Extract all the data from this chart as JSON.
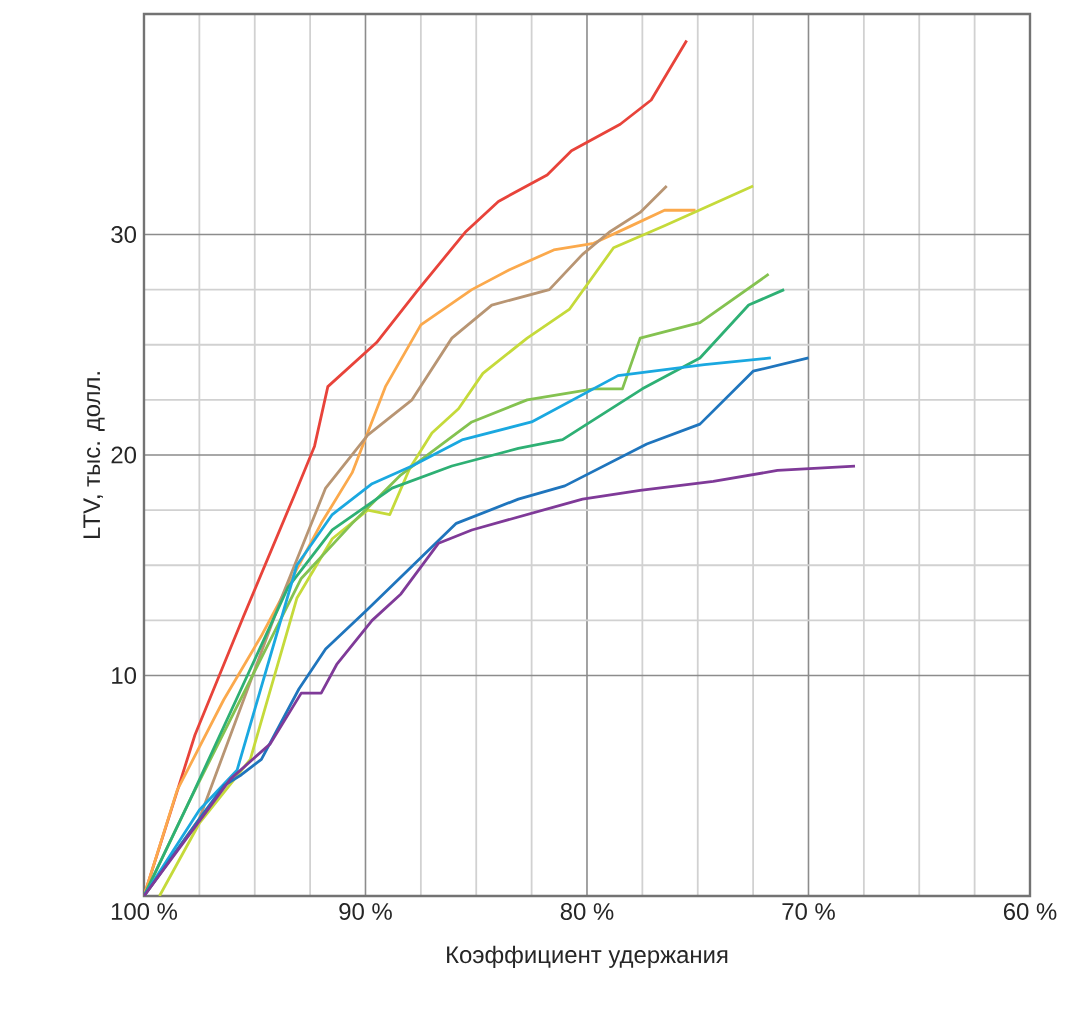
{
  "chart_data": {
    "type": "line",
    "xlabel": "Коэффициент удержания",
    "ylabel": "LTV, тыс. долл.",
    "xlim": [
      100,
      60
    ],
    "ylim": [
      0,
      40
    ],
    "xticks": [
      {
        "value": 100,
        "label": "100 %"
      },
      {
        "value": 90,
        "label": "90 %"
      },
      {
        "value": 80,
        "label": "80 %"
      },
      {
        "value": 70,
        "label": "70 %"
      },
      {
        "value": 60,
        "label": "60 %"
      }
    ],
    "yticks": [
      10,
      20,
      30
    ],
    "grid": true,
    "marker": "none",
    "line_style": "solid",
    "series": [
      {
        "color": "#e8433a",
        "x": [
          100,
          97.7,
          95.5,
          93.2,
          92.3,
          91.7,
          89.5,
          87.7,
          85.5,
          84,
          81.8,
          80.7,
          78.5,
          77.1,
          75.5
        ],
        "values": [
          0,
          7.3,
          12.7,
          18.2,
          20.4,
          23.1,
          25.1,
          27.4,
          30.1,
          31.5,
          32.7,
          33.8,
          35,
          36.1,
          38.8
        ]
      },
      {
        "color": "#fba94c",
        "x": [
          100,
          98.5,
          96.4,
          94.7,
          92,
          90.6,
          89.1,
          87.5,
          85.2,
          83.5,
          81.5,
          79.7,
          78.2,
          76.5,
          75.1
        ],
        "values": [
          0,
          4.8,
          8.9,
          11.8,
          16.9,
          19.2,
          23.1,
          25.9,
          27.5,
          28.4,
          29.3,
          29.6,
          30.3,
          31.1,
          31.1
        ]
      },
      {
        "color": "#b89573",
        "x": [
          100,
          97.5,
          93.8,
          91.8,
          89.9,
          87.9,
          86.1,
          84.3,
          81.7,
          80.2,
          79,
          77.6,
          76.4
        ],
        "values": [
          0,
          3.5,
          13.5,
          18.5,
          20.9,
          22.5,
          25.3,
          26.8,
          27.5,
          29.1,
          30.1,
          31,
          32.2
        ]
      },
      {
        "color": "#c5da3a",
        "x": [
          99.3,
          97.5,
          95.2,
          93.1,
          91.5,
          89.9,
          88.9,
          88,
          87,
          85.8,
          84.7,
          82.7,
          80.8,
          78.8,
          76.5,
          72.5
        ],
        "values": [
          0,
          3.3,
          6.2,
          13.5,
          16.2,
          17.5,
          17.3,
          19.4,
          21,
          22.1,
          23.7,
          25.3,
          26.6,
          29.4,
          30.4,
          32.2
        ]
      },
      {
        "color": "#84c250",
        "x": [
          100,
          97.9,
          92.9,
          90.6,
          88.4,
          85.2,
          82.7,
          79.7,
          78.4,
          77.6,
          74.9,
          71.8
        ],
        "values": [
          0,
          4.4,
          14.4,
          16.9,
          19.1,
          21.5,
          22.5,
          23,
          23,
          25.3,
          26,
          28.2
        ]
      },
      {
        "color": "#2eb074",
        "x": [
          100,
          97.9,
          93.5,
          91.5,
          88.8,
          86.1,
          83.1,
          81.1,
          77.5,
          74.9,
          72.7,
          71.1
        ],
        "values": [
          0,
          4.4,
          14,
          16.6,
          18.5,
          19.5,
          20.3,
          20.7,
          23,
          24.4,
          26.8,
          27.5
        ]
      },
      {
        "color": "#1aa8e0",
        "x": [
          100,
          97.5,
          95.8,
          93.1,
          91.5,
          89.7,
          87.9,
          85.6,
          82.5,
          78.6,
          74.7,
          71.7
        ],
        "values": [
          0,
          3.9,
          5.7,
          15,
          17.3,
          18.7,
          19.5,
          20.7,
          21.5,
          23.6,
          24.1,
          24.4
        ]
      },
      {
        "color": "#1f75bd",
        "x": [
          100,
          97.5,
          96.4,
          95.6,
          94.7,
          93,
          91.8,
          89.9,
          85.9,
          83.1,
          81,
          77.3,
          74.9,
          72.5,
          70
        ],
        "values": [
          0,
          3.5,
          5,
          5.5,
          6.2,
          9.4,
          11.2,
          13,
          16.9,
          18,
          18.6,
          20.5,
          21.4,
          23.8,
          24.4
        ]
      },
      {
        "color": "#7f3a98",
        "x": [
          100,
          96.1,
          94.3,
          92.9,
          92,
          91.3,
          89.7,
          88.4,
          86.7,
          85.2,
          80.2,
          77.6,
          74.3,
          71.4,
          67.9
        ],
        "values": [
          0,
          5.3,
          6.9,
          9.2,
          9.2,
          10.5,
          12.5,
          13.7,
          16,
          16.6,
          18,
          18.4,
          18.8,
          19.3,
          19.5
        ]
      }
    ]
  }
}
